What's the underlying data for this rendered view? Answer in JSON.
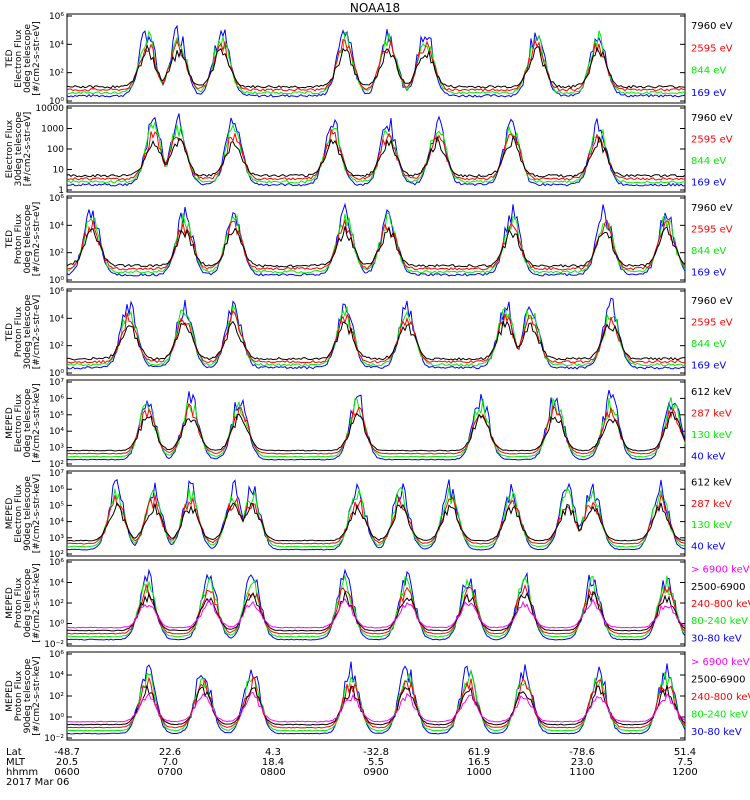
{
  "title": "NOAA18",
  "colors": {
    "black": "#000000",
    "red": "#ff0000",
    "green": "#00ee00",
    "blue": "#0000ff",
    "magenta": "#ff00ff"
  },
  "chart_data": [
    {
      "type": "line",
      "ylabel": [
        "TED",
        "Electron Flux",
        "0deg telescope",
        "[#/cm2-s-str-eV]"
      ],
      "yticks": [
        "10⁰",
        "10²",
        "10⁴",
        "10⁶"
      ],
      "ylim": [
        1,
        1000000
      ],
      "legend": [
        {
          "name": "7960 eV",
          "color": "#000000"
        },
        {
          "name": "2595 eV",
          "color": "#ff0000"
        },
        {
          "name": "844 eV",
          "color": "#00ee00"
        },
        {
          "name": "169 eV",
          "color": "#0000ff"
        }
      ],
      "peaks": [
        0.13,
        0.18,
        0.25,
        0.45,
        0.52,
        0.58,
        0.76,
        0.86
      ]
    },
    {
      "type": "line",
      "ylabel": [
        "Electron Flux",
        "30deg telescope",
        "[#/cm2-s-str-eV]"
      ],
      "yticks": [
        "1",
        "10",
        "100",
        "1000",
        "10000"
      ],
      "ylim": [
        1,
        10000
      ],
      "legend": [
        {
          "name": "7960 eV",
          "color": "#000000"
        },
        {
          "name": "2595 eV",
          "color": "#ff0000"
        },
        {
          "name": "844 eV",
          "color": "#00ee00"
        },
        {
          "name": "169 eV",
          "color": "#0000ff"
        }
      ],
      "peaks": [
        0.14,
        0.18,
        0.27,
        0.43,
        0.52,
        0.6,
        0.72,
        0.86
      ]
    },
    {
      "type": "line",
      "ylabel": [
        "TED",
        "Proton Flux",
        "0deg telescope",
        "[#/cm2-s-str-eV]"
      ],
      "yticks": [
        "10⁰",
        "10²",
        "10⁴",
        "10⁶"
      ],
      "ylim": [
        1,
        1000000
      ],
      "legend": [
        {
          "name": "7960 eV",
          "color": "#000000"
        },
        {
          "name": "2595 eV",
          "color": "#ff0000"
        },
        {
          "name": "844 eV",
          "color": "#00ee00"
        },
        {
          "name": "169 eV",
          "color": "#0000ff"
        }
      ],
      "peaks": [
        0.04,
        0.19,
        0.27,
        0.45,
        0.52,
        0.72,
        0.87,
        0.97
      ]
    },
    {
      "type": "line",
      "ylabel": [
        "TED",
        "Proton Flux",
        "30deg telescope",
        "[#/cm2-s-str-eV]"
      ],
      "yticks": [
        "10⁰",
        "10²",
        "10⁴",
        "10⁶"
      ],
      "ylim": [
        1,
        1000000
      ],
      "legend": [
        {
          "name": "7960 eV",
          "color": "#000000"
        },
        {
          "name": "2595 eV",
          "color": "#ff0000"
        },
        {
          "name": "844 eV",
          "color": "#00ee00"
        },
        {
          "name": "169 eV",
          "color": "#0000ff"
        }
      ],
      "peaks": [
        0.1,
        0.19,
        0.27,
        0.45,
        0.55,
        0.71,
        0.75,
        0.88
      ]
    },
    {
      "type": "line",
      "ylabel": [
        "MEPED",
        "Electron Flux",
        "0deg telescope",
        "[#/cm2-s-str-keV]"
      ],
      "yticks": [
        "10²",
        "10³",
        "10⁴",
        "10⁵",
        "10⁶",
        "10⁷"
      ],
      "ylim": [
        100,
        10000000
      ],
      "legend": [
        {
          "name": "612 keV",
          "color": "#000000"
        },
        {
          "name": "287 keV",
          "color": "#ff0000"
        },
        {
          "name": "130 keV",
          "color": "#00ee00"
        },
        {
          "name": "40 keV",
          "color": "#0000ff"
        }
      ],
      "peaks": [
        0.13,
        0.2,
        0.28,
        0.47,
        0.67,
        0.79,
        0.88,
        0.98
      ]
    },
    {
      "type": "line",
      "ylabel": [
        "MEPED",
        "Electron Flux",
        "90deg telescope",
        "[#/cm2-s-str-keV]"
      ],
      "yticks": [
        "10²",
        "10³",
        "10⁴",
        "10⁵",
        "10⁶",
        "10⁷"
      ],
      "ylim": [
        100,
        10000000
      ],
      "legend": [
        {
          "name": "612 keV",
          "color": "#000000"
        },
        {
          "name": "287 keV",
          "color": "#ff0000"
        },
        {
          "name": "130 keV",
          "color": "#00ee00"
        },
        {
          "name": "40 keV",
          "color": "#0000ff"
        }
      ],
      "peaks": [
        0.08,
        0.14,
        0.2,
        0.27,
        0.3,
        0.47,
        0.54,
        0.62,
        0.72,
        0.81,
        0.85,
        0.96
      ]
    },
    {
      "type": "line",
      "ylabel": [
        "MEPED",
        "Proton Flux",
        "0deg telescope",
        "[#/cm2-s-str-keV]"
      ],
      "yticks": [
        "10⁻²",
        "10⁰",
        "10²",
        "10⁴",
        "10⁶"
      ],
      "ylim": [
        0.01,
        1000000
      ],
      "legend": [
        {
          "name": "> 6900 keV",
          "color": "#ff00ff"
        },
        {
          "name": "2500-6900",
          "color": "#000000"
        },
        {
          "name": "240-800 keV",
          "color": "#ff0000"
        },
        {
          "name": "80-240 keV",
          "color": "#00ee00"
        },
        {
          "name": "30-80 keV",
          "color": "#0000ff"
        }
      ],
      "peaks": [
        0.13,
        0.23,
        0.3,
        0.45,
        0.55,
        0.65,
        0.74,
        0.85,
        0.97
      ]
    },
    {
      "type": "line",
      "ylabel": [
        "MEPED",
        "Proton Flux",
        "90deg telescope",
        "[#/cm2-s-str-keV]"
      ],
      "yticks": [
        "10⁻²",
        "10⁰",
        "10²",
        "10⁴",
        "10⁶"
      ],
      "ylim": [
        0.01,
        1000000
      ],
      "legend": [
        {
          "name": "> 6900 keV",
          "color": "#ff00ff"
        },
        {
          "name": "2500-6900",
          "color": "#000000"
        },
        {
          "name": "240-800 keV",
          "color": "#ff0000"
        },
        {
          "name": "80-240 keV",
          "color": "#00ee00"
        },
        {
          "name": "30-80 keV",
          "color": "#0000ff"
        }
      ],
      "peaks": [
        0.13,
        0.22,
        0.3,
        0.46,
        0.55,
        0.65,
        0.74,
        0.86,
        0.97
      ]
    }
  ],
  "footer": {
    "row_labels": [
      "Lat",
      "MLT",
      "hhmm",
      "2017 Mar 06"
    ],
    "columns": [
      {
        "lat": "-48.7",
        "mlt": "20.5",
        "hhmm": "0600"
      },
      {
        "lat": "22.6",
        "mlt": "7.0",
        "hhmm": "0700"
      },
      {
        "lat": "4.3",
        "mlt": "18.4",
        "hhmm": "0800"
      },
      {
        "lat": "-32.8",
        "mlt": "5.5",
        "hhmm": "0900"
      },
      {
        "lat": "61.9",
        "mlt": "16.5",
        "hhmm": "1000"
      },
      {
        "lat": "-78.6",
        "mlt": "23.0",
        "hhmm": "1100"
      },
      {
        "lat": "51.4",
        "mlt": "7.5",
        "hhmm": "1200"
      }
    ]
  }
}
